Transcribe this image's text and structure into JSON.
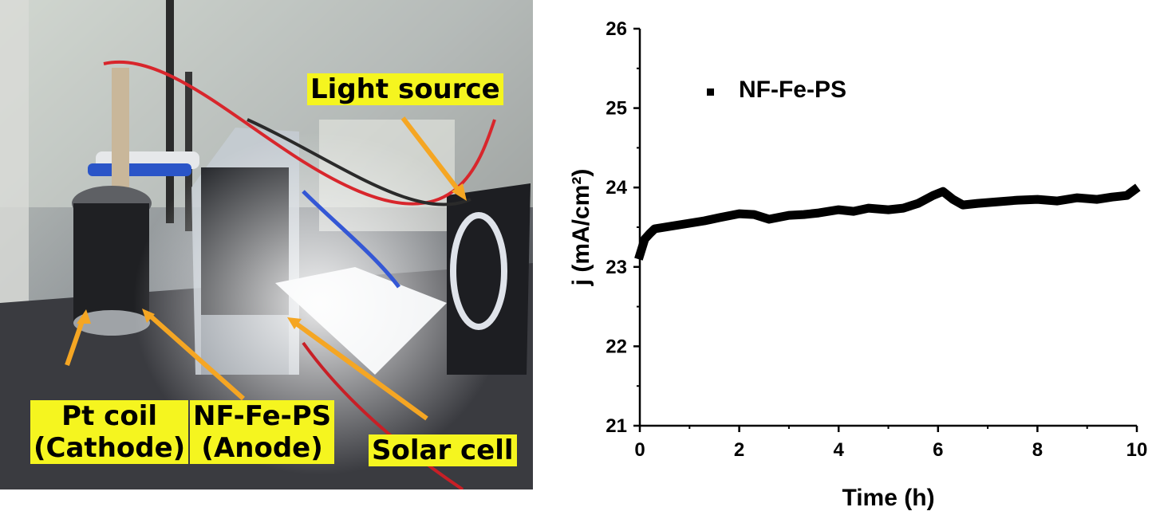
{
  "photo": {
    "labels": {
      "light_source": "Light source",
      "pt_coil_line1": "Pt coil",
      "pt_coil_line2": "(Cathode)",
      "anode_line1": "NF-Fe-PS",
      "anode_line2": "(Anode)",
      "solar_cell": "Solar cell"
    },
    "colors": {
      "callout_bg": "#f5f51f",
      "arrow": "#f5a623"
    }
  },
  "chart_data": {
    "type": "line",
    "title": "",
    "xlabel": "Time (h)",
    "ylabel": "j (mA/cm²)",
    "xlim": [
      0,
      10
    ],
    "ylim": [
      21,
      26
    ],
    "xticks": [
      0,
      2,
      4,
      6,
      8,
      10
    ],
    "yticks": [
      21,
      22,
      23,
      24,
      25,
      26
    ],
    "legend_position": "top-left",
    "series": [
      {
        "name": "NF-Fe-PS",
        "color": "#000000",
        "x": [
          0,
          0.05,
          0.1,
          0.2,
          0.3,
          0.5,
          0.7,
          1.0,
          1.3,
          1.6,
          2.0,
          2.3,
          2.6,
          3.0,
          3.3,
          3.6,
          4.0,
          4.3,
          4.6,
          5.0,
          5.3,
          5.6,
          5.9,
          6.1,
          6.3,
          6.5,
          6.8,
          7.2,
          7.6,
          8.0,
          8.4,
          8.8,
          9.2,
          9.5,
          9.8,
          9.95
        ],
        "y": [
          23.15,
          23.25,
          23.35,
          23.42,
          23.48,
          23.5,
          23.52,
          23.55,
          23.58,
          23.62,
          23.67,
          23.66,
          23.6,
          23.65,
          23.66,
          23.68,
          23.72,
          23.7,
          23.74,
          23.72,
          23.74,
          23.8,
          23.9,
          23.95,
          23.85,
          23.78,
          23.8,
          23.82,
          23.84,
          23.85,
          23.83,
          23.87,
          23.85,
          23.88,
          23.9,
          23.97
        ]
      }
    ]
  }
}
